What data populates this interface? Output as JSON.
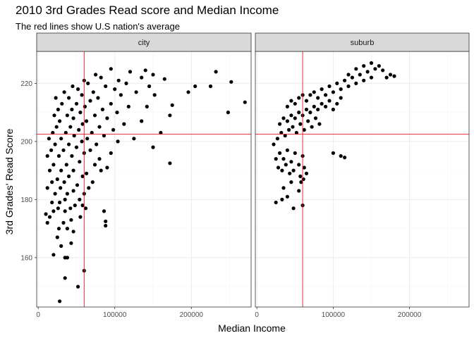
{
  "chart_data": {
    "type": "scatter",
    "title": "2010 3rd Grades Read score and Median Income",
    "subtitle": "The red lines show U.S nation's average",
    "xlabel": "Median Income",
    "ylabel": "3rd Grades' Read Score",
    "xlim": [
      -2000,
      278000
    ],
    "ylim": [
      143,
      231
    ],
    "xticks": [
      0,
      100000,
      200000
    ],
    "yticks": [
      160,
      180,
      200,
      220
    ],
    "xtick_labels": [
      "0",
      "100000",
      "200000"
    ],
    "ytick_labels": [
      "160",
      "180",
      "200",
      "220"
    ],
    "grid": true,
    "point_color": "#000000",
    "reference_lines": {
      "x": 60000,
      "y": 202.5,
      "color": "#e41a1c"
    },
    "facets": [
      {
        "label": "city",
        "points": [
          [
            28000,
            145
          ],
          [
            52000,
            150
          ],
          [
            35000,
            153
          ],
          [
            60000,
            155.5
          ],
          [
            20000,
            161
          ],
          [
            35000,
            160
          ],
          [
            38000,
            160
          ],
          [
            30000,
            164
          ],
          [
            43000,
            165
          ],
          [
            25000,
            167
          ],
          [
            38000,
            170
          ],
          [
            46000,
            169
          ],
          [
            27000,
            170
          ],
          [
            33000,
            172
          ],
          [
            12000,
            172
          ],
          [
            15000,
            174
          ],
          [
            43000,
            173
          ],
          [
            55000,
            174
          ],
          [
            88000,
            171
          ],
          [
            88000,
            172.5
          ],
          [
            10000,
            175
          ],
          [
            20000,
            176
          ],
          [
            26000,
            177
          ],
          [
            35000,
            176
          ],
          [
            42000,
            177
          ],
          [
            58000,
            178
          ],
          [
            62000,
            177
          ],
          [
            18000,
            179
          ],
          [
            28000,
            179
          ],
          [
            48000,
            178
          ],
          [
            35000,
            180
          ],
          [
            54000,
            180
          ],
          [
            86000,
            176
          ],
          [
            22000,
            182
          ],
          [
            38000,
            182
          ],
          [
            60000,
            182
          ],
          [
            12000,
            184
          ],
          [
            29000,
            184
          ],
          [
            46000,
            183
          ],
          [
            66000,
            184
          ],
          [
            18000,
            186
          ],
          [
            34000,
            186
          ],
          [
            51000,
            185
          ],
          [
            25000,
            187
          ],
          [
            40000,
            188
          ],
          [
            58000,
            188
          ],
          [
            71000,
            186
          ],
          [
            15000,
            190
          ],
          [
            30000,
            190
          ],
          [
            46000,
            190
          ],
          [
            63000,
            189
          ],
          [
            82000,
            190
          ],
          [
            20000,
            192
          ],
          [
            37000,
            192
          ],
          [
            54000,
            193
          ],
          [
            74000,
            192
          ],
          [
            90000,
            191
          ],
          [
            172000,
            192.5
          ],
          [
            12000,
            195
          ],
          [
            27000,
            195
          ],
          [
            44000,
            195
          ],
          [
            60000,
            196
          ],
          [
            80000,
            194
          ],
          [
            17000,
            197
          ],
          [
            33000,
            197
          ],
          [
            50000,
            198
          ],
          [
            68000,
            197
          ],
          [
            95000,
            196
          ],
          [
            22000,
            199
          ],
          [
            40000,
            199
          ],
          [
            57000,
            200
          ],
          [
            76000,
            199
          ],
          [
            104000,
            200
          ],
          [
            150000,
            198
          ],
          [
            14000,
            201
          ],
          [
            30000,
            201
          ],
          [
            47000,
            202
          ],
          [
            64000,
            201
          ],
          [
            86000,
            202
          ],
          [
            125000,
            201
          ],
          [
            19000,
            203
          ],
          [
            36000,
            203
          ],
          [
            53000,
            204
          ],
          [
            70000,
            203
          ],
          [
            98000,
            204
          ],
          [
            160000,
            203
          ],
          [
            24000,
            205
          ],
          [
            42000,
            205
          ],
          [
            58000,
            206
          ],
          [
            80000,
            205
          ],
          [
            112000,
            206
          ],
          [
            28000,
            207
          ],
          [
            46000,
            208
          ],
          [
            63000,
            207
          ],
          [
            90000,
            208
          ],
          [
            135000,
            207
          ],
          [
            21000,
            209
          ],
          [
            38000,
            209
          ],
          [
            55000,
            210
          ],
          [
            74000,
            209
          ],
          [
            103000,
            210
          ],
          [
            172000,
            209
          ],
          [
            248000,
            210
          ],
          [
            26000,
            211
          ],
          [
            44000,
            211
          ],
          [
            61000,
            212
          ],
          [
            84000,
            211
          ],
          [
            118000,
            212
          ],
          [
            31000,
            213
          ],
          [
            50000,
            213
          ],
          [
            68000,
            214
          ],
          [
            95000,
            213
          ],
          [
            142000,
            212
          ],
          [
            175000,
            212.5
          ],
          [
            270000,
            213.5
          ],
          [
            23000,
            215
          ],
          [
            40000,
            215
          ],
          [
            57000,
            216
          ],
          [
            78000,
            215
          ],
          [
            108000,
            216
          ],
          [
            152000,
            216
          ],
          [
            34000,
            217
          ],
          [
            52000,
            218
          ],
          [
            72000,
            217
          ],
          [
            100000,
            218
          ],
          [
            128000,
            217
          ],
          [
            196000,
            217
          ],
          [
            45000,
            219
          ],
          [
            65000,
            220
          ],
          [
            88000,
            219
          ],
          [
            115000,
            220
          ],
          [
            145000,
            219
          ],
          [
            205000,
            219
          ],
          [
            225000,
            219
          ],
          [
            252000,
            220.5
          ],
          [
            60000,
            221
          ],
          [
            82000,
            222
          ],
          [
            105000,
            221
          ],
          [
            135000,
            222
          ],
          [
            165000,
            221.5
          ],
          [
            75000,
            223
          ],
          [
            120000,
            224
          ],
          [
            150000,
            223
          ],
          [
            232000,
            224
          ],
          [
            95000,
            225
          ],
          [
            140000,
            224.5
          ]
        ]
      },
      {
        "label": "suburb",
        "points": [
          [
            25000,
            194
          ],
          [
            30000,
            196
          ],
          [
            35000,
            194
          ],
          [
            40000,
            197
          ],
          [
            45000,
            193
          ],
          [
            50000,
            196
          ],
          [
            55000,
            192
          ],
          [
            60000,
            195
          ],
          [
            28000,
            191
          ],
          [
            33000,
            190
          ],
          [
            38000,
            192
          ],
          [
            43000,
            189
          ],
          [
            48000,
            190
          ],
          [
            57000,
            188
          ],
          [
            62000,
            191
          ],
          [
            100000,
            196
          ],
          [
            110000,
            195
          ],
          [
            115000,
            194.5
          ],
          [
            22000,
            199
          ],
          [
            27000,
            201
          ],
          [
            32000,
            203
          ],
          [
            37000,
            202
          ],
          [
            42000,
            204
          ],
          [
            47000,
            205
          ],
          [
            52000,
            203
          ],
          [
            57000,
            206
          ],
          [
            62000,
            204
          ],
          [
            67000,
            207
          ],
          [
            72000,
            205
          ],
          [
            77000,
            208
          ],
          [
            82000,
            206
          ],
          [
            30000,
            206
          ],
          [
            35000,
            208
          ],
          [
            40000,
            207
          ],
          [
            45000,
            209
          ],
          [
            50000,
            208
          ],
          [
            55000,
            210
          ],
          [
            60000,
            209
          ],
          [
            65000,
            211
          ],
          [
            70000,
            210
          ],
          [
            75000,
            212
          ],
          [
            80000,
            211
          ],
          [
            85000,
            213
          ],
          [
            90000,
            212
          ],
          [
            95000,
            214
          ],
          [
            100000,
            211
          ],
          [
            105000,
            213
          ],
          [
            110000,
            215
          ],
          [
            40000,
            212
          ],
          [
            45000,
            214
          ],
          [
            50000,
            213
          ],
          [
            55000,
            215
          ],
          [
            60000,
            216
          ],
          [
            65000,
            214
          ],
          [
            70000,
            216
          ],
          [
            75000,
            217
          ],
          [
            80000,
            215
          ],
          [
            85000,
            218
          ],
          [
            90000,
            216
          ],
          [
            95000,
            219
          ],
          [
            100000,
            217
          ],
          [
            105000,
            220
          ],
          [
            110000,
            218
          ],
          [
            115000,
            221
          ],
          [
            120000,
            219
          ],
          [
            125000,
            222
          ],
          [
            130000,
            220
          ],
          [
            135000,
            223
          ],
          [
            140000,
            221
          ],
          [
            145000,
            224
          ],
          [
            150000,
            222
          ],
          [
            155000,
            225
          ],
          [
            160000,
            226
          ],
          [
            165000,
            224.5
          ],
          [
            170000,
            222
          ],
          [
            175000,
            223
          ],
          [
            180000,
            222.5
          ],
          [
            150000,
            227
          ],
          [
            140000,
            226
          ],
          [
            130000,
            225
          ],
          [
            120000,
            223
          ],
          [
            60000,
            178
          ],
          [
            48000,
            177
          ],
          [
            25000,
            179
          ],
          [
            33000,
            180
          ],
          [
            40000,
            181
          ],
          [
            55000,
            183
          ],
          [
            35000,
            184
          ],
          [
            45000,
            186
          ],
          [
            58000,
            186
          ],
          [
            61000,
            187
          ],
          [
            65000,
            189
          ]
        ]
      }
    ]
  }
}
